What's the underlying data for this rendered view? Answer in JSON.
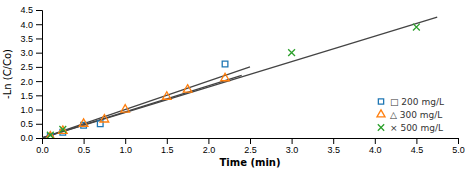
{
  "chart_data": {
    "type": "scatter",
    "xlabel": "Time (min)",
    "ylabel": "-Ln (C/Co)",
    "xlim": [
      0,
      5
    ],
    "ylim": [
      0,
      4.5
    ],
    "xticks": [
      {
        "value": 0,
        "label": "0.0"
      },
      0.5,
      {
        "value": 1,
        "label": "1.0"
      },
      1.5,
      {
        "value": 2,
        "label": "2.0"
      },
      2.5,
      {
        "value": 3,
        "label": "3.0"
      },
      3.5,
      {
        "value": 4,
        "label": "4.0"
      },
      4.5,
      {
        "value": 5,
        "label": "5.0"
      }
    ],
    "yticks": [
      {
        "value": 0,
        "label": "0.0"
      },
      0.5,
      {
        "value": 1,
        "label": "1.0"
      },
      1.5,
      {
        "value": 2,
        "label": "2.0"
      },
      2.5,
      {
        "value": 3,
        "label": "3.0"
      },
      3.5,
      {
        "value": 4,
        "label": "4.0"
      },
      4.5
    ],
    "legend": "lower right",
    "series": [
      {
        "type": "line",
        "x": [
          0,
          2.4
        ],
        "values": [
          0,
          2.2
        ]
      },
      {
        "type": "line",
        "x": [
          0,
          2.5
        ],
        "values": [
          0,
          2.5
        ]
      },
      {
        "type": "line",
        "x": [
          0,
          4.75
        ],
        "values": [
          0,
          4.25
        ]
      },
      {
        "name": "□ 200 mg/L",
        "type": "scatter",
        "marker": "square",
        "x": [
          0.1,
          0.25,
          0.5,
          0.7,
          2.2
        ],
        "values": [
          0.05,
          0.2,
          0.45,
          0.5,
          2.6
        ]
      },
      {
        "name": "△ 300 mg/L",
        "type": "scatter",
        "marker": "triangle",
        "x": [
          0.1,
          0.25,
          0.5,
          0.75,
          1.0,
          1.5,
          1.75,
          2.2
        ],
        "values": [
          0.05,
          0.25,
          0.5,
          0.65,
          1.0,
          1.45,
          1.7,
          2.1
        ]
      },
      {
        "name": "× 500 mg/L",
        "type": "scatter",
        "marker": "cross",
        "x": [
          0.1,
          0.25,
          3.0,
          4.5
        ],
        "values": [
          0.1,
          0.3,
          3.0,
          3.9
        ]
      }
    ]
  }
}
